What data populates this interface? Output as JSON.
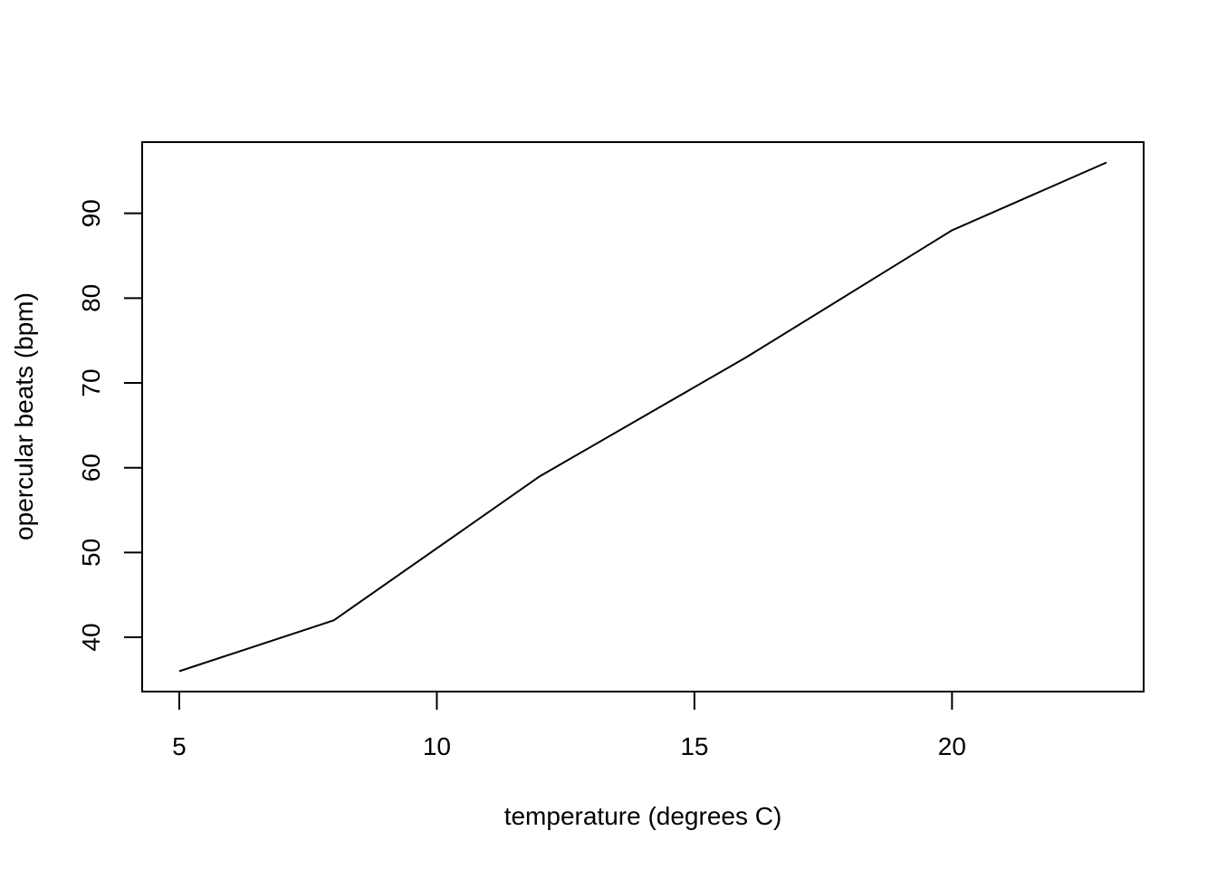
{
  "chart_data": {
    "type": "line",
    "title": "",
    "xlabel": "temperature (degrees C)",
    "ylabel": "opercular beats (bpm)",
    "x": [
      5,
      8,
      12,
      16,
      20,
      23
    ],
    "series": [
      {
        "values": [
          36,
          42,
          59,
          73,
          88,
          96
        ]
      }
    ],
    "xlim": [
      4.28,
      23.72
    ],
    "ylim": [
      33.6,
      98.4
    ],
    "xticks": [
      5,
      10,
      15,
      20
    ],
    "yticks": [
      40,
      50,
      60,
      70,
      80,
      90
    ],
    "grid": false,
    "legend": "none",
    "line_color": "#000000"
  }
}
